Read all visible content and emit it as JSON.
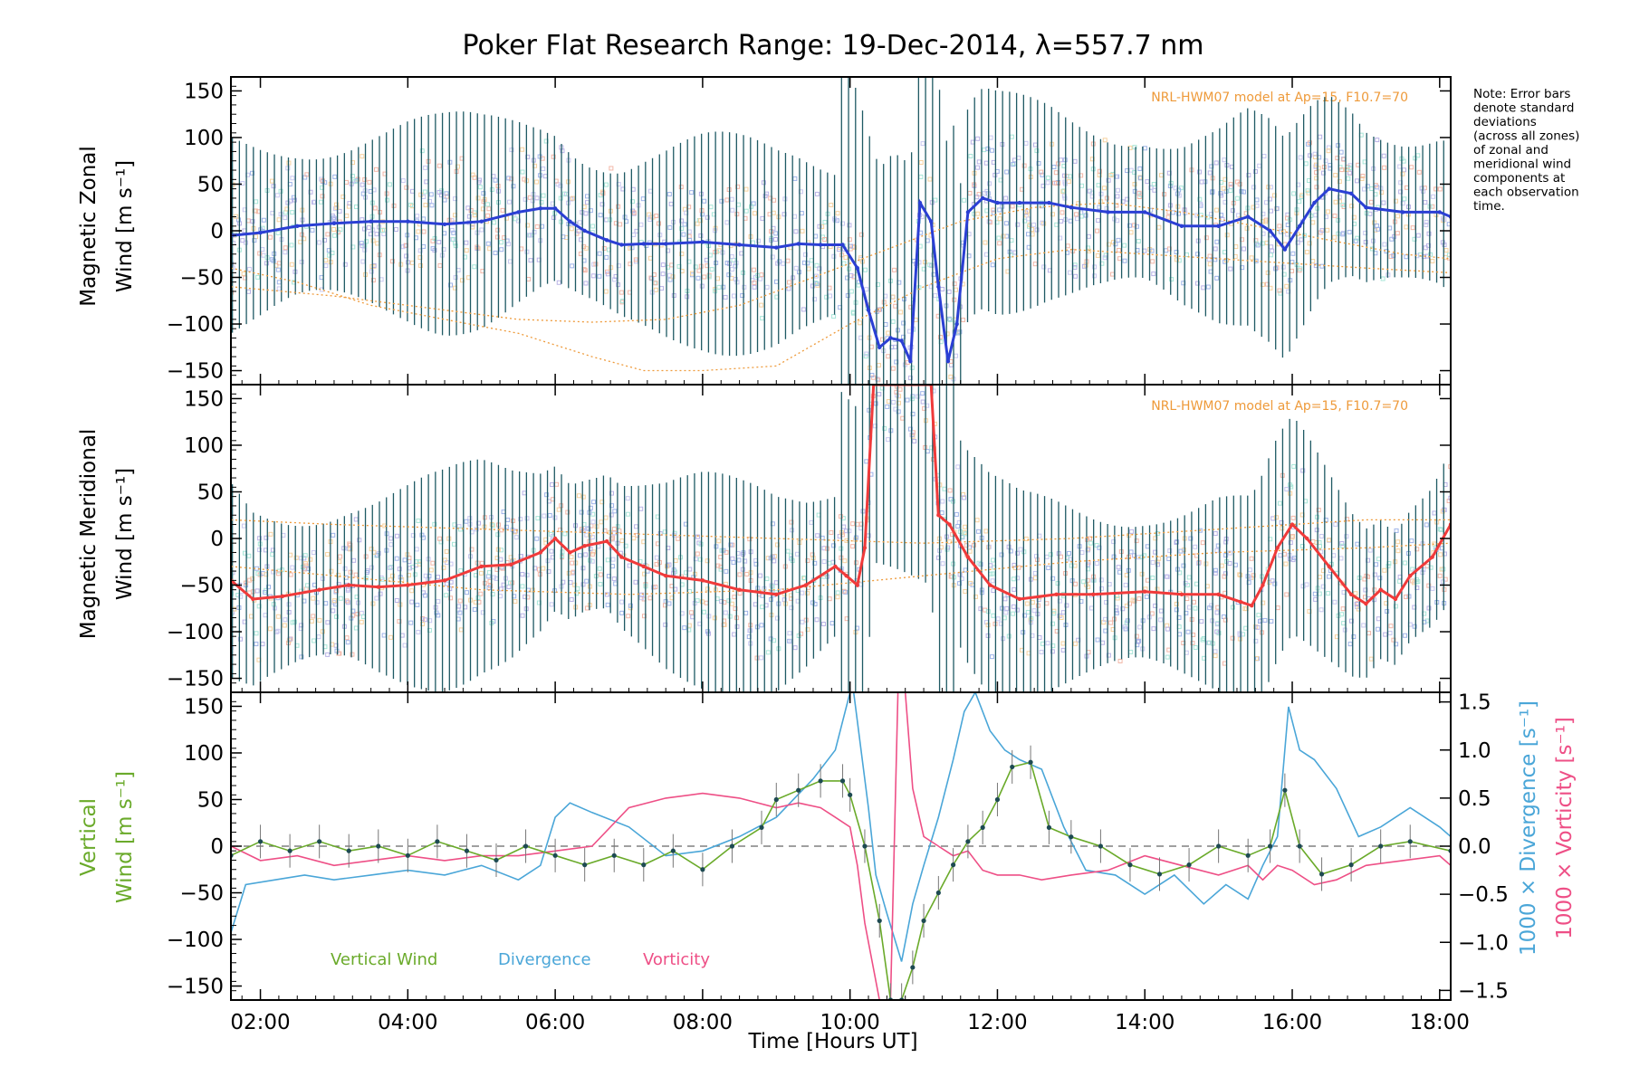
{
  "title": "Poker Flat Research Range: 19-Dec-2014, λ=557.7 nm",
  "note_lines": [
    "Note: Error bars",
    "denote standard",
    "deviations",
    "(across all zones)",
    "of zonal and",
    "meridional wind",
    "components at",
    "each observation",
    "time."
  ],
  "colors": {
    "zonal": "#2b3fd4",
    "meridional": "#f03a3a",
    "vertical": "#6aaa2a",
    "divergence": "#4aa6d8",
    "vorticity": "#ee4f86",
    "model": "#ee9a3a",
    "errorbar": "#1f5a64"
  },
  "chart_data": [
    {
      "type": "line",
      "panel": "zonal",
      "ylabel_line1": "Magnetic Zonal",
      "ylabel_line2": "Wind [m s⁻¹]",
      "model_label": "NRL-HWM07 model at Ap=15, F10.7=70",
      "xlim": [
        1.6,
        18.15
      ],
      "ylim": [
        -165,
        165
      ],
      "yticks": [
        -150,
        -100,
        -50,
        0,
        50,
        100,
        150
      ],
      "x": [
        1.6,
        2.0,
        2.5,
        3.0,
        3.5,
        4.0,
        4.5,
        5.0,
        5.5,
        5.8,
        6.0,
        6.2,
        6.4,
        6.7,
        6.9,
        7.2,
        7.5,
        8.0,
        8.5,
        9.0,
        9.3,
        9.6,
        9.9,
        10.1,
        10.25,
        10.4,
        10.55,
        10.7,
        10.82,
        10.95,
        11.1,
        11.2,
        11.33,
        11.45,
        11.6,
        11.8,
        12.0,
        12.3,
        12.7,
        13.0,
        13.5,
        14.0,
        14.5,
        15.0,
        15.4,
        15.7,
        15.9,
        16.1,
        16.3,
        16.5,
        16.8,
        17.0,
        17.5,
        18.0,
        18.15
      ],
      "y": [
        -5,
        -2,
        5,
        8,
        10,
        10,
        7,
        10,
        20,
        24,
        24,
        10,
        0,
        -10,
        -15,
        -14,
        -14,
        -12,
        -15,
        -18,
        -14,
        -15,
        -15,
        -40,
        -85,
        -125,
        -115,
        -118,
        -140,
        30,
        10,
        -60,
        -140,
        -100,
        20,
        35,
        30,
        30,
        30,
        25,
        20,
        20,
        5,
        5,
        15,
        0,
        -20,
        5,
        30,
        45,
        40,
        25,
        20,
        20,
        15
      ],
      "model_curves": [
        {
          "x": [
            1.6,
            2.5,
            3.5,
            4.5,
            5.5,
            6.5,
            7.2,
            8.0,
            9.0,
            10.0,
            11.0,
            12.0,
            13.0,
            14.0,
            15.0,
            16.0,
            17.0,
            18.15
          ],
          "y": [
            -40,
            -55,
            -80,
            -95,
            -110,
            -135,
            -150,
            -150,
            -145,
            -100,
            -60,
            -30,
            -20,
            -25,
            -30,
            -35,
            -40,
            -45
          ]
        },
        {
          "x": [
            1.6,
            3.0,
            4.5,
            5.5,
            6.5,
            7.5,
            8.5,
            9.5,
            10.5,
            11.5,
            12.5,
            13.5,
            14.5,
            15.5,
            16.5,
            17.5,
            18.15
          ],
          "y": [
            -60,
            -70,
            -85,
            -95,
            -98,
            -95,
            -80,
            -50,
            -20,
            10,
            25,
            30,
            20,
            5,
            -10,
            -25,
            -30
          ]
        }
      ]
    },
    {
      "type": "line",
      "panel": "meridional",
      "ylabel_line1": "Magnetic Meridional",
      "ylabel_line2": "Wind [m s⁻¹]",
      "model_label": "NRL-HWM07 model at Ap=15, F10.7=70",
      "xlim": [
        1.6,
        18.15
      ],
      "ylim": [
        -165,
        165
      ],
      "yticks": [
        -150,
        -100,
        -50,
        0,
        50,
        100,
        150
      ],
      "x": [
        1.6,
        1.9,
        2.3,
        2.8,
        3.2,
        3.6,
        4.0,
        4.5,
        5.0,
        5.4,
        5.8,
        6.0,
        6.2,
        6.4,
        6.7,
        6.9,
        7.2,
        7.5,
        8.0,
        8.5,
        9.0,
        9.4,
        9.8,
        9.95,
        10.1,
        10.2,
        10.32,
        11.1,
        11.2,
        11.35,
        11.6,
        11.9,
        12.3,
        12.8,
        13.3,
        14.0,
        14.5,
        15.0,
        15.3,
        15.45,
        15.6,
        15.8,
        16.0,
        16.2,
        16.5,
        16.8,
        17.0,
        17.2,
        17.4,
        17.6,
        17.9,
        18.15
      ],
      "y": [
        -45,
        -65,
        -62,
        -55,
        -50,
        -52,
        -50,
        -45,
        -30,
        -28,
        -15,
        0,
        -15,
        -8,
        -3,
        -20,
        -30,
        -40,
        -45,
        -55,
        -60,
        -50,
        -30,
        -40,
        -50,
        -10,
        165,
        165,
        25,
        15,
        -20,
        -50,
        -65,
        -60,
        -60,
        -57,
        -60,
        -60,
        -68,
        -72,
        -50,
        -10,
        15,
        0,
        -30,
        -60,
        -70,
        -55,
        -65,
        -40,
        -20,
        15
      ],
      "model_curves": [
        {
          "x": [
            1.6,
            3.0,
            5.0,
            7.0,
            9.0,
            11.0,
            13.0,
            15.0,
            17.0,
            18.15
          ],
          "y": [
            20,
            15,
            10,
            5,
            0,
            -5,
            0,
            10,
            20,
            20
          ]
        },
        {
          "x": [
            1.6,
            3.0,
            5.0,
            7.0,
            9.0,
            11.0,
            13.0,
            15.0,
            17.0,
            18.15
          ],
          "y": [
            -30,
            -40,
            -55,
            -60,
            -55,
            -40,
            -25,
            -15,
            -10,
            -5
          ]
        }
      ]
    },
    {
      "type": "line",
      "panel": "vertical",
      "ylabel_line1": "Vertical",
      "ylabel_line2": "Wind [m s⁻¹]",
      "right_label_div": "1000 × Divergence [s⁻¹]",
      "right_label_vor": "1000 × Vorticity [s⁻¹]",
      "xlabel": "Time [Hours UT]",
      "xticks": [
        "02:00",
        "04:00",
        "06:00",
        "08:00",
        "10:00",
        "12:00",
        "14:00",
        "16:00",
        "18:00"
      ],
      "xtick_values": [
        2,
        4,
        6,
        8,
        10,
        12,
        14,
        16,
        18
      ],
      "xlim": [
        1.6,
        18.15
      ],
      "ylim": [
        -165,
        165
      ],
      "yticks": [
        -150,
        -100,
        -50,
        0,
        50,
        100,
        150
      ],
      "right_ylim": [
        -1.6,
        1.6
      ],
      "right_yticks": [
        "-1.5",
        "-1.0",
        "-0.5",
        "0.0",
        "0.5",
        "1.0",
        "1.5"
      ],
      "right_ytick_values": [
        -1.5,
        -1.0,
        -0.5,
        0.0,
        0.5,
        1.0,
        1.5
      ],
      "legend": [
        "Vertical Wind",
        "Divergence",
        "Vorticity"
      ],
      "vertical_wind": {
        "x": [
          1.6,
          2.0,
          2.4,
          2.8,
          3.2,
          3.6,
          4.0,
          4.4,
          4.8,
          5.2,
          5.6,
          6.0,
          6.4,
          6.8,
          7.2,
          7.6,
          8.0,
          8.4,
          8.8,
          9.0,
          9.3,
          9.6,
          9.9,
          10.0,
          10.2,
          10.4,
          10.55,
          10.7,
          10.85,
          11.0,
          11.2,
          11.4,
          11.6,
          11.8,
          12.0,
          12.2,
          12.45,
          12.7,
          13.0,
          13.4,
          13.8,
          14.2,
          14.6,
          15.0,
          15.4,
          15.7,
          15.9,
          16.1,
          16.4,
          16.8,
          17.2,
          17.6,
          18.15
        ],
        "y": [
          -10,
          5,
          -5,
          5,
          -5,
          0,
          -10,
          5,
          -5,
          -15,
          0,
          -10,
          -20,
          -10,
          -20,
          -5,
          -25,
          0,
          20,
          50,
          60,
          70,
          70,
          55,
          0,
          -80,
          -165,
          -165,
          -130,
          -80,
          -50,
          -20,
          5,
          20,
          50,
          85,
          90,
          20,
          10,
          0,
          -20,
          -30,
          -20,
          0,
          -10,
          0,
          60,
          0,
          -30,
          -20,
          0,
          5,
          -5
        ]
      },
      "divergence": {
        "x": [
          1.6,
          1.8,
          2.2,
          2.6,
          3.0,
          3.5,
          4.0,
          4.5,
          5.0,
          5.5,
          5.8,
          6.0,
          6.2,
          6.5,
          7.0,
          7.5,
          8.0,
          8.5,
          9.0,
          9.5,
          9.8,
          10.0,
          10.05,
          10.25,
          10.35,
          10.5,
          10.7,
          10.85,
          11.0,
          11.2,
          11.4,
          11.55,
          11.7,
          11.9,
          12.1,
          12.3,
          12.6,
          12.9,
          13.2,
          13.6,
          14.0,
          14.4,
          14.8,
          15.1,
          15.4,
          15.6,
          15.8,
          15.95,
          16.1,
          16.3,
          16.6,
          16.9,
          17.2,
          17.6,
          18.0,
          18.15
        ],
        "y": [
          -0.9,
          -0.4,
          -0.35,
          -0.3,
          -0.35,
          -0.3,
          -0.25,
          -0.3,
          -0.2,
          -0.35,
          -0.2,
          0.3,
          0.45,
          0.35,
          0.2,
          -0.1,
          -0.05,
          0.1,
          0.3,
          0.7,
          1.0,
          1.6,
          1.6,
          0.4,
          -0.3,
          -0.7,
          -1.2,
          -0.6,
          -0.2,
          0.3,
          0.9,
          1.4,
          1.6,
          1.2,
          1.0,
          0.9,
          0.8,
          0.2,
          -0.25,
          -0.3,
          -0.5,
          -0.3,
          -0.6,
          -0.4,
          -0.55,
          -0.2,
          0.1,
          1.45,
          1.0,
          0.9,
          0.6,
          0.1,
          0.2,
          0.4,
          0.2,
          0.1
        ]
      },
      "vorticity": {
        "x": [
          1.6,
          2.0,
          2.5,
          3.0,
          3.5,
          4.0,
          4.5,
          5.0,
          5.5,
          6.0,
          6.5,
          7.0,
          7.5,
          8.0,
          8.5,
          9.0,
          9.3,
          9.6,
          9.8,
          10.0,
          10.1,
          10.2,
          10.3,
          10.4,
          10.55,
          10.65,
          10.75,
          10.85,
          11.0,
          11.2,
          11.4,
          11.6,
          11.8,
          12.0,
          12.3,
          12.6,
          13.0,
          13.5,
          14.0,
          14.5,
          15.0,
          15.4,
          15.6,
          15.8,
          16.0,
          16.3,
          16.6,
          17.0,
          17.5,
          18.0,
          18.15
        ],
        "y": [
          0.0,
          -0.15,
          -0.1,
          -0.2,
          -0.15,
          -0.1,
          -0.15,
          -0.1,
          -0.1,
          -0.05,
          0.0,
          0.4,
          0.5,
          0.55,
          0.5,
          0.4,
          0.45,
          0.4,
          0.3,
          0.2,
          -0.2,
          -0.8,
          -1.2,
          -1.6,
          -1.6,
          1.6,
          1.6,
          0.6,
          0.1,
          0.0,
          -0.1,
          -0.05,
          -0.25,
          -0.3,
          -0.3,
          -0.35,
          -0.3,
          -0.25,
          -0.1,
          -0.2,
          -0.3,
          -0.2,
          -0.35,
          -0.2,
          -0.25,
          -0.4,
          -0.35,
          -0.2,
          -0.15,
          -0.1,
          -0.2
        ]
      }
    }
  ]
}
